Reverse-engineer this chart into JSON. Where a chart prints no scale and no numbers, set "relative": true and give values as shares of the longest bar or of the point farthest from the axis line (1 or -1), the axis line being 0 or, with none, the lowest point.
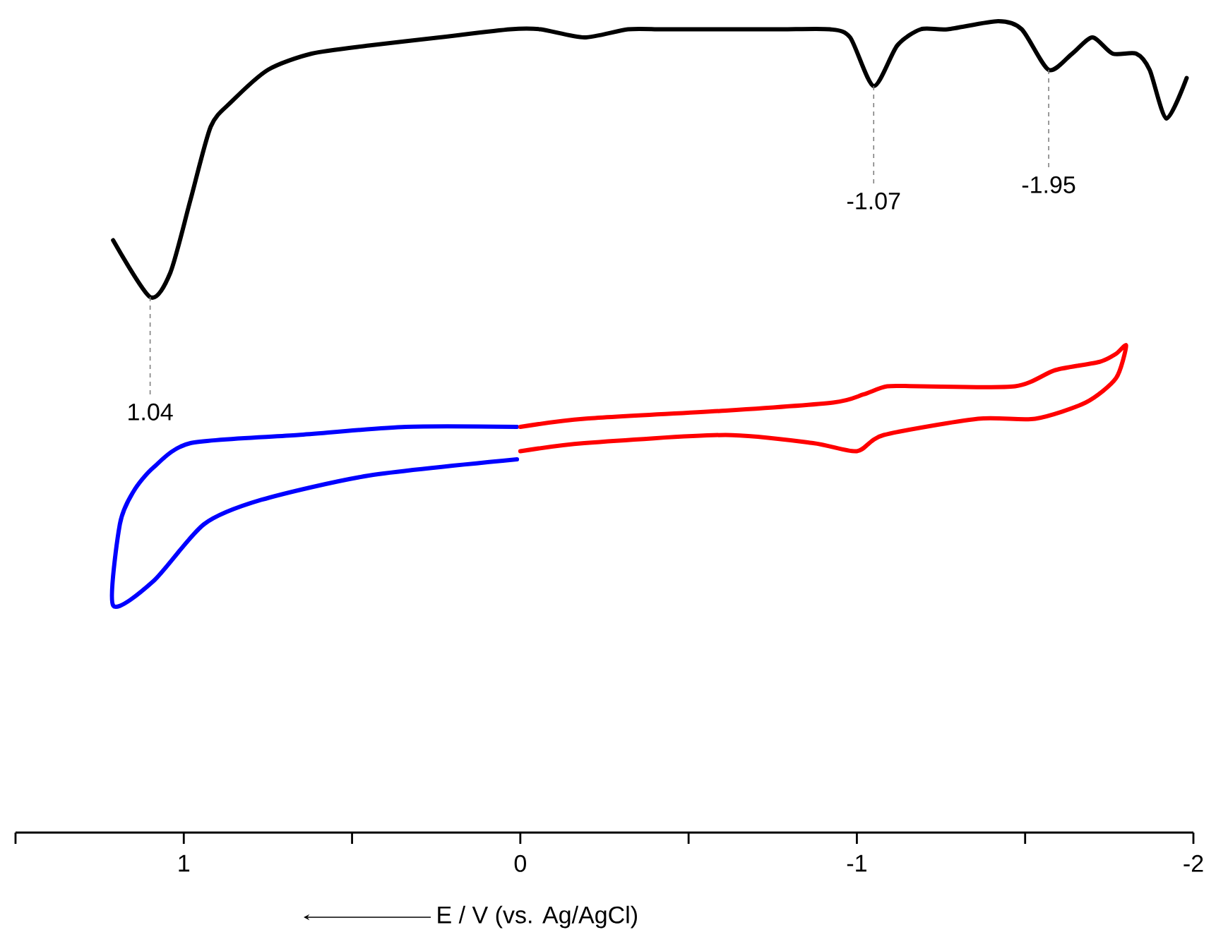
{
  "chart_data": {
    "type": "line",
    "relative": true,
    "xlabel": "E / V (vs. Ag/AgCl)",
    "xlim": [
      1.5,
      -2
    ],
    "xticks": [
      {
        "value": 1.5,
        "label": null
      },
      1,
      {
        "value": 0.5,
        "label": null
      },
      0,
      {
        "value": -0.5,
        "label": null
      },
      -1,
      {
        "value": -1.5,
        "label": null
      },
      -2
    ],
    "tick_labels": "x",
    "series": [
      {
        "color": "#000000",
        "x": [
          1.21,
          1.1,
          1.04,
          0.98,
          0.92,
          0.86,
          0.75,
          0.62,
          0.45,
          0.24,
          0.03,
          -0.06,
          -0.19,
          -0.32,
          -0.42,
          -0.55,
          -0.66,
          -0.78,
          -0.92,
          -0.98,
          -1.05,
          -1.12,
          -1.19,
          -1.27,
          -1.42,
          -1.49,
          -1.57,
          -1.64,
          -1.7,
          -1.76,
          -1.83,
          -1.87,
          -1.92,
          -1.98
        ],
        "values": [
          0.73,
          0.66,
          0.69,
          0.78,
          0.87,
          0.9,
          0.94,
          0.96,
          0.97,
          0.98,
          0.99,
          0.99,
          0.98,
          0.99,
          0.99,
          0.99,
          0.99,
          0.99,
          0.99,
          0.98,
          0.92,
          0.97,
          0.99,
          0.99,
          1.0,
          0.99,
          0.94,
          0.96,
          0.98,
          0.96,
          0.96,
          0.94,
          0.88,
          0.93
        ]
      },
      {
        "color": "#0000ff",
        "x": [
          0.01,
          0.34,
          0.66,
          0.98,
          1.09,
          1.15,
          1.19,
          1.21,
          1.09,
          0.94,
          0.77,
          0.45,
          0.01
        ],
        "values": [
          0.5,
          0.5,
          0.49,
          0.48,
          0.45,
          0.42,
          0.38,
          0.28,
          0.31,
          0.38,
          0.41,
          0.44,
          0.46
        ]
      },
      {
        "color": "#ff0000",
        "x": [
          0.0,
          -0.19,
          -0.61,
          -0.93,
          -1.02,
          -1.09,
          -1.19,
          -1.47,
          -1.59,
          -1.72,
          -1.77,
          -1.8,
          -1.77,
          -1.68,
          -1.53,
          -1.36,
          -1.08,
          -1.0,
          -0.87,
          -0.61,
          -0.19,
          0.0
        ],
        "values": [
          0.5,
          0.51,
          0.52,
          0.53,
          0.54,
          0.55,
          0.55,
          0.55,
          0.57,
          0.58,
          0.59,
          0.6,
          0.56,
          0.53,
          0.51,
          0.51,
          0.49,
          0.47,
          0.48,
          0.49,
          0.48,
          0.47
        ]
      }
    ],
    "annotations": [
      {
        "text": "1.04",
        "x": 1.1,
        "y": 0.66
      },
      {
        "text": "-1.07",
        "x": -1.05,
        "y": 0.92
      },
      {
        "text": "-1.95",
        "x": -1.57,
        "y": 0.94
      }
    ]
  }
}
